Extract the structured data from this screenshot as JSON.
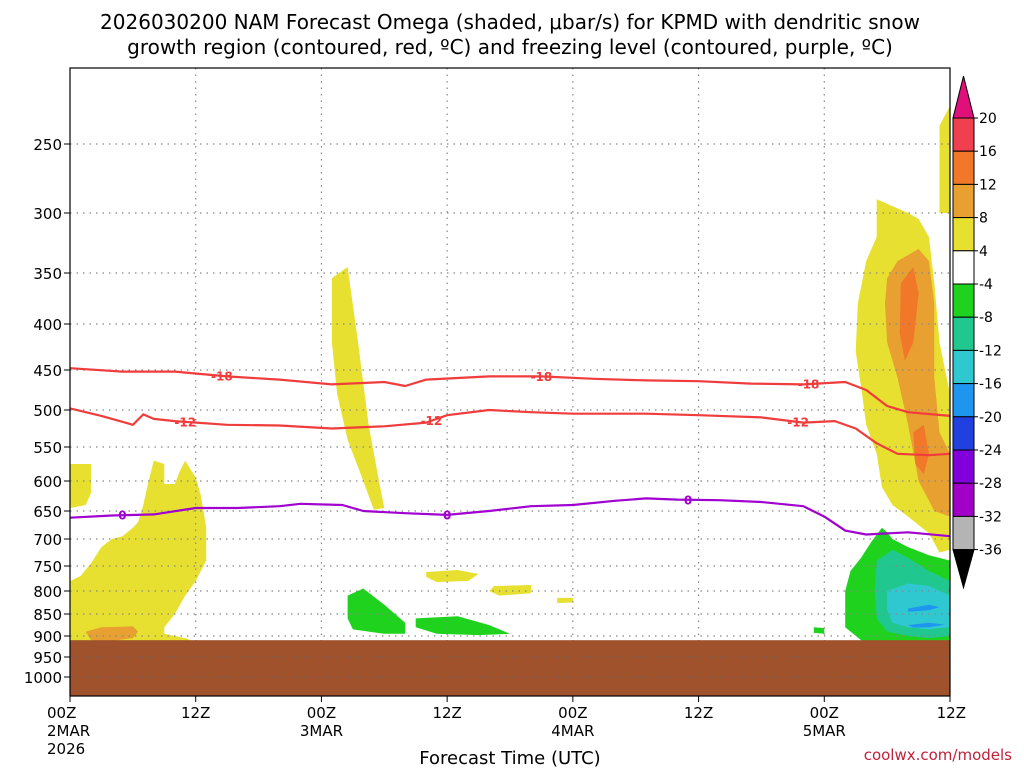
{
  "chart_data": {
    "type": "contour",
    "title_line1": "2026030200 NAM Forecast Omega (shaded, μbar/s) for KPMD with dendritic snow",
    "title_line2": "growth region (contoured, red, ºC) and freezing level (contoured, purple, ºC)",
    "xlabel": "Forecast Time (UTC)",
    "credit": "coolwx.com/models",
    "x_ticks": [
      {
        "h": 0,
        "l1": "00Z",
        "l2": "2MAR",
        "l3": "2026"
      },
      {
        "h": 12,
        "l1": "12Z",
        "l2": "",
        "l3": ""
      },
      {
        "h": 24,
        "l1": "00Z",
        "l2": "3MAR",
        "l3": ""
      },
      {
        "h": 36,
        "l1": "12Z",
        "l2": "",
        "l3": ""
      },
      {
        "h": 48,
        "l1": "00Z",
        "l2": "4MAR",
        "l3": ""
      },
      {
        "h": 60,
        "l1": "12Z",
        "l2": "",
        "l3": ""
      },
      {
        "h": 72,
        "l1": "00Z",
        "l2": "5MAR",
        "l3": ""
      },
      {
        "h": 84,
        "l1": "12Z",
        "l2": "",
        "l3": ""
      }
    ],
    "y_ticks": [
      250,
      300,
      350,
      400,
      450,
      500,
      550,
      600,
      650,
      700,
      750,
      800,
      850,
      900,
      950,
      1000
    ],
    "xlim": [
      0,
      84
    ],
    "ylim_hPa": [
      200,
      1025
    ],
    "surface_pressure": 910,
    "colorbar": {
      "labels": [
        "20",
        "16",
        "12",
        "8",
        "4",
        "-4",
        "-8",
        "-12",
        "-16",
        "-20",
        "-24",
        "-28",
        "-32",
        "-36"
      ],
      "colors": [
        "#f04050",
        "#f07828",
        "#e8a030",
        "#e8e030",
        "#ffffff",
        "#1ed21e",
        "#20c890",
        "#30c8d0",
        "#1e96f0",
        "#2040e0",
        "#8200dc",
        "#a000c8",
        "#b4b4b4"
      ],
      "top_arrow_color": "#e0107a",
      "bottom_arrow_color": "#000000"
    },
    "contours": {
      "dgz_minus18": {
        "label": "-18",
        "color": "#f03c3c",
        "points": [
          [
            0,
            448
          ],
          [
            5,
            452
          ],
          [
            10,
            452
          ],
          [
            15,
            458
          ],
          [
            20,
            462
          ],
          [
            25,
            468
          ],
          [
            30,
            465
          ],
          [
            32,
            470
          ],
          [
            34,
            462
          ],
          [
            40,
            458
          ],
          [
            45,
            458
          ],
          [
            50,
            461
          ],
          [
            55,
            463
          ],
          [
            60,
            464
          ],
          [
            65,
            467
          ],
          [
            70,
            468
          ],
          [
            74,
            465
          ],
          [
            76,
            475
          ],
          [
            78,
            495
          ],
          [
            80,
            503
          ],
          [
            84,
            508
          ]
        ],
        "label_hours": [
          14.5,
          45,
          70.5
        ]
      },
      "dgz_minus12": {
        "label": "-12",
        "color": "#f03c3c",
        "points": [
          [
            0,
            498
          ],
          [
            3,
            508
          ],
          [
            6,
            520
          ],
          [
            7,
            506
          ],
          [
            8,
            512
          ],
          [
            10,
            515
          ],
          [
            15,
            520
          ],
          [
            20,
            521
          ],
          [
            25,
            525
          ],
          [
            30,
            522
          ],
          [
            34,
            517
          ],
          [
            36,
            507
          ],
          [
            40,
            500
          ],
          [
            44,
            503
          ],
          [
            48,
            505
          ],
          [
            55,
            505
          ],
          [
            60,
            507
          ],
          [
            66,
            510
          ],
          [
            70,
            517
          ],
          [
            73,
            515
          ],
          [
            75,
            525
          ],
          [
            77,
            545
          ],
          [
            79,
            560
          ],
          [
            82,
            562
          ],
          [
            84,
            560
          ]
        ],
        "label_hours": [
          11,
          34.5,
          69.5
        ]
      },
      "freezing_0": {
        "label": "0",
        "color": "#a000d0",
        "points": [
          [
            0,
            662
          ],
          [
            4,
            658
          ],
          [
            8,
            656
          ],
          [
            12,
            645
          ],
          [
            16,
            645
          ],
          [
            20,
            642
          ],
          [
            22,
            638
          ],
          [
            26,
            640
          ],
          [
            28,
            650
          ],
          [
            32,
            654
          ],
          [
            36,
            657
          ],
          [
            40,
            650
          ],
          [
            44,
            642
          ],
          [
            48,
            640
          ],
          [
            52,
            633
          ],
          [
            55,
            629
          ],
          [
            58,
            631
          ],
          [
            62,
            632
          ],
          [
            66,
            635
          ],
          [
            70,
            642
          ],
          [
            72,
            660
          ],
          [
            74,
            685
          ],
          [
            76,
            692
          ],
          [
            80,
            688
          ],
          [
            84,
            695
          ]
        ],
        "label_hours": [
          5,
          36,
          59
        ]
      }
    },
    "omega_regions": [
      {
        "value_min": 4,
        "value_max": 8,
        "color": "#e8e030",
        "desc": "upward-positive yellow areas"
      },
      {
        "value_min": 8,
        "value_max": 12,
        "color": "#e8a030",
        "desc": "orange core"
      },
      {
        "value_min": 12,
        "value_max": 16,
        "color": "#f07828",
        "desc": "dark orange core"
      },
      {
        "value_min": -8,
        "value_max": -4,
        "color": "#1ed21e",
        "desc": "green"
      },
      {
        "value_min": -12,
        "value_max": -8,
        "color": "#20c890",
        "desc": "teal-green"
      },
      {
        "value_min": -16,
        "value_max": -12,
        "color": "#30c8d0",
        "desc": "cyan"
      },
      {
        "value_min": -20,
        "value_max": -16,
        "color": "#1e96f0",
        "desc": "blue"
      }
    ]
  }
}
